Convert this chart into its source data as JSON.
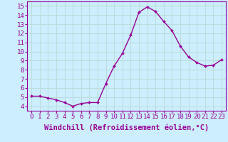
{
  "x": [
    0,
    1,
    2,
    3,
    4,
    5,
    6,
    7,
    8,
    9,
    10,
    11,
    12,
    13,
    14,
    15,
    16,
    17,
    18,
    19,
    20,
    21,
    22,
    23
  ],
  "y": [
    5.1,
    5.1,
    4.9,
    4.7,
    4.4,
    4.0,
    4.3,
    4.4,
    4.4,
    6.5,
    8.4,
    9.8,
    11.8,
    14.3,
    14.9,
    14.4,
    13.3,
    12.3,
    10.6,
    9.4,
    8.8,
    8.4,
    8.5,
    9.1
  ],
  "xlabel": "Windchill (Refroidissement éolien,°C)",
  "line_color": "#990099",
  "marker_color": "#990099",
  "bg_color": "#cceeff",
  "grid_color": "#bbdddd",
  "ylim": [
    3.5,
    15.5
  ],
  "xlim": [
    -0.5,
    23.5
  ],
  "yticks": [
    4,
    5,
    6,
    7,
    8,
    9,
    10,
    11,
    12,
    13,
    14,
    15
  ],
  "xticks": [
    0,
    1,
    2,
    3,
    4,
    5,
    6,
    7,
    8,
    9,
    10,
    11,
    12,
    13,
    14,
    15,
    16,
    17,
    18,
    19,
    20,
    21,
    22,
    23
  ],
  "tick_fontsize": 6.5,
  "label_fontsize": 7.5
}
